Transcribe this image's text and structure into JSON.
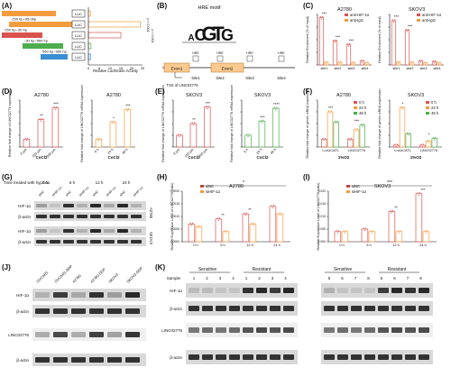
{
  "colors": {
    "orange": "#f39c3d",
    "green": "#4cae4c",
    "blue": "#3a8fd4",
    "red": "#d9534f",
    "light_orange": "#f9c98f",
    "gel": "#d9d9d9"
  },
  "panelA": {
    "label": "(A)",
    "constructs": [
      {
        "name": "",
        "box": "LUC"
      },
      {
        "name": "-150 bp~95 0bp",
        "box": "LUC"
      },
      {
        "name": "-150 bp~30 bp",
        "box": "LUC"
      },
      {
        "name": "-30 bp~560 bp",
        "box": "LUC"
      },
      {
        "name": "560 bp~950 bp",
        "box": "LUC"
      }
    ],
    "pvals": [
      "p < 0.001",
      "p < 0.001"
    ],
    "xlabel": "Relative Luciferase Activity",
    "ticks": [
      "0",
      "5",
      "10",
      "15",
      "20",
      "25"
    ],
    "chart_data": {
      "type": "bar",
      "orientation": "horizontal",
      "values": [
        1,
        24,
        15,
        1.2,
        1.1
      ],
      "xlim": [
        0,
        25
      ]
    }
  },
  "panelB": {
    "label": "(B)",
    "motif_title": "HRE motif",
    "letters": [
      "A",
      "C",
      "G",
      "T",
      "G"
    ],
    "exons": [
      "Exon1",
      "Exon2"
    ],
    "sites": [
      "Site1",
      "Site2",
      "Site3",
      "Site4"
    ],
    "hre": [
      "HRE",
      "HRE",
      "HRE",
      "HRE"
    ],
    "tss": "TSS of LINC02776"
  },
  "panelC": {
    "label": "(C)",
    "chart_data": [
      {
        "type": "bar",
        "title": "A2780",
        "ylabel": "Relative Enrichment (% of input)",
        "categories": [
          "site1",
          "site2",
          "site3",
          "site4"
        ],
        "series": [
          {
            "name": "anti-HIF-1α",
            "values": [
              7.5,
              3.8,
              3.2,
              0.6
            ]
          },
          {
            "name": "anti-IgG",
            "values": [
              0.4,
              0.4,
              0.3,
              0.3
            ]
          }
        ],
        "ylim": [
          0,
          8
        ],
        "sig": [
          "***",
          "***",
          "***",
          ""
        ]
      },
      {
        "type": "bar",
        "title": "SKOV3",
        "ylabel": "Relative Enrichment (% of input)",
        "categories": [
          "site1",
          "site2",
          "site3",
          "site4"
        ],
        "series": [
          {
            "name": "anti-HIF-1α",
            "values": [
              7.0,
              5.5,
              0.6,
              0.5
            ]
          },
          {
            "name": "anti-IgG",
            "values": [
              0.4,
              0.4,
              0.3,
              0.3
            ]
          }
        ],
        "ylim": [
          0,
          8
        ],
        "sig": [
          "***",
          "***",
          "",
          ""
        ]
      }
    ]
  },
  "panelD": {
    "label": "(D)",
    "chart_data": [
      {
        "type": "bar",
        "title": "A2780",
        "ylabel": "Relative fold change of LINC02776 expression",
        "xlabel": "CoCl2",
        "categories": [
          "0 μm",
          "100 μm",
          "200 μm"
        ],
        "values": [
          1,
          3.5,
          5
        ],
        "ylim": [
          0,
          6
        ],
        "sig": [
          "**",
          "***"
        ]
      },
      {
        "type": "bar",
        "title": "A2780",
        "ylabel": "Relative fold change of LINC02776 mRNA expression",
        "xlabel": "CoCl2",
        "categories": [
          "0 h",
          "24 h",
          "48 h"
        ],
        "values": [
          1,
          3.2,
          4.8
        ],
        "ylim": [
          0,
          6
        ],
        "sig": [
          "*",
          "***"
        ]
      }
    ]
  },
  "panelE": {
    "label": "(E)",
    "chart_data": [
      {
        "type": "bar",
        "title": "SKOV3",
        "ylabel": "Relative fold change of LINC02776 mRNA expression",
        "xlabel": "CoCl2",
        "categories": [
          "0 μm",
          "100 μm",
          "200 μm"
        ],
        "values": [
          1,
          2,
          3.4
        ],
        "ylim": [
          0,
          4
        ],
        "sig": [
          "**",
          "***"
        ]
      },
      {
        "type": "bar",
        "title": "SKOV3",
        "ylabel": "Relative fold change of LINC02776 mRNA expression",
        "xlabel": "CoCl2",
        "categories": [
          "0 h",
          "24 h",
          "48 h"
        ],
        "values": [
          1,
          2.2,
          3.3
        ],
        "ylim": [
          0,
          4
        ],
        "sig": [
          "***",
          "****"
        ]
      }
    ]
  },
  "panelF": {
    "label": "(F)",
    "legend": [
      "0 h",
      "24 h",
      "48 h"
    ],
    "chart_data": [
      {
        "type": "bar",
        "title": "A2780",
        "ylabel": "Relative fold change of genes mRNA expression",
        "xlabel": "1%O2",
        "categories": [
          "LncUCAT1",
          "LINC02776"
        ],
        "series": [
          {
            "name": "0 h",
            "values": [
              1,
              1
            ]
          },
          {
            "name": "24 h",
            "values": [
              4.5,
              2.2
            ]
          },
          {
            "name": "48 h",
            "values": [
              3.2,
              2.8
            ]
          }
        ],
        "ylim": [
          0,
          6
        ],
        "sig": [
          "***",
          "***"
        ]
      },
      {
        "type": "bar",
        "title": "SKOV3",
        "ylabel": "Relative fold change of genes mRNA expression",
        "xlabel": "1%O2",
        "categories": [
          "LncUCAT1",
          "LINC02776"
        ],
        "series": [
          {
            "name": "0 h",
            "values": [
              1,
              1
            ]
          },
          {
            "name": "24 h",
            "values": [
              21,
              3
            ]
          },
          {
            "name": "48 h",
            "values": [
              7,
              4.5
            ]
          }
        ],
        "ylim": [
          0,
          25
        ],
        "sig": [
          "*",
          "*"
        ]
      }
    ]
  },
  "panelG": {
    "label": "(G)",
    "header": "Time treated with hypoxia",
    "times": [
      "0 h",
      "6 h",
      "12 h",
      "24 h"
    ],
    "lanes": [
      "siNC",
      "siHIF-1α",
      "siNC",
      "siHIF-1α",
      "siNC",
      "siHIF-1α",
      "siNC",
      "siHIF-1α"
    ],
    "rows": [
      "HIF-1α",
      "β-actin",
      "HIF-1α",
      "β-actin"
    ],
    "cells": [
      "A2780",
      "SKOV3"
    ]
  },
  "panelH": {
    "label": "(H)",
    "title": "A2780",
    "legend": [
      "siNC",
      "siHIF-1α"
    ],
    "ylabel": "Relative Expression Level of LINC02776 (ratio)",
    "categories": [
      "0 h",
      "6 h",
      "12 h",
      "24 h"
    ],
    "yticks": [
      "0.0000",
      "0.0005",
      "0.0010",
      "0.0015",
      "0.0020"
    ],
    "chart_data": {
      "type": "bar",
      "series": [
        {
          "name": "siNC",
          "values": [
            0.0007,
            0.0009,
            0.0011,
            0.0014
          ]
        },
        {
          "name": "siHIF-1α",
          "values": [
            0.0006,
            0.0004,
            0.0007,
            0.0011
          ]
        }
      ],
      "ylim": [
        0,
        0.002
      ],
      "sig": [
        "",
        "**",
        "**",
        ""
      ]
    },
    "top_sig": "*"
  },
  "panelI": {
    "label": "(I)",
    "title": "SKOV3",
    "legend": [
      "siNC",
      "siHIF-1α"
    ],
    "ylabel": "Relative Expression Level of LINC02776 (ratio)",
    "categories": [
      "0 h",
      "6 h",
      "12 h",
      "24 h"
    ],
    "yticks": [
      "0.000",
      "0.005",
      "0.010",
      "0.015",
      "0.020"
    ],
    "chart_data": {
      "type": "bar",
      "series": [
        {
          "name": "siNC",
          "values": [
            0.004,
            0.005,
            0.012,
            0.019
          ]
        },
        {
          "name": "siHIF-1α",
          "values": [
            0.004,
            0.004,
            0.004,
            0.004
          ]
        }
      ],
      "ylim": [
        0,
        0.02
      ],
      "sig": [
        "",
        "",
        "**",
        "***"
      ]
    },
    "top_sig": "***"
  },
  "panelJ": {
    "label": "(J)",
    "lanes": [
      "OVCAR3",
      "OVCAR3-DDP",
      "A2780",
      "A2780-DDP",
      "SKOV3",
      "SKOV3-DDP"
    ],
    "rows": [
      "HIF-1α",
      "β-actin",
      "LINC02776",
      "β-actin"
    ]
  },
  "panelK": {
    "label": "(K)",
    "sample_label": "Sample",
    "groups": [
      "Sensitive",
      "Resistant",
      "Sensitive",
      "Resistant"
    ],
    "samples_left": [
      "1",
      "2",
      "3",
      "4",
      "1",
      "2",
      "3",
      "4"
    ],
    "samples_right": [
      "5",
      "6",
      "7",
      "8",
      "5",
      "6",
      "7",
      "8"
    ],
    "rows": [
      "HIF-1α",
      "β-actin",
      "LINC02776",
      "β-actin"
    ]
  }
}
